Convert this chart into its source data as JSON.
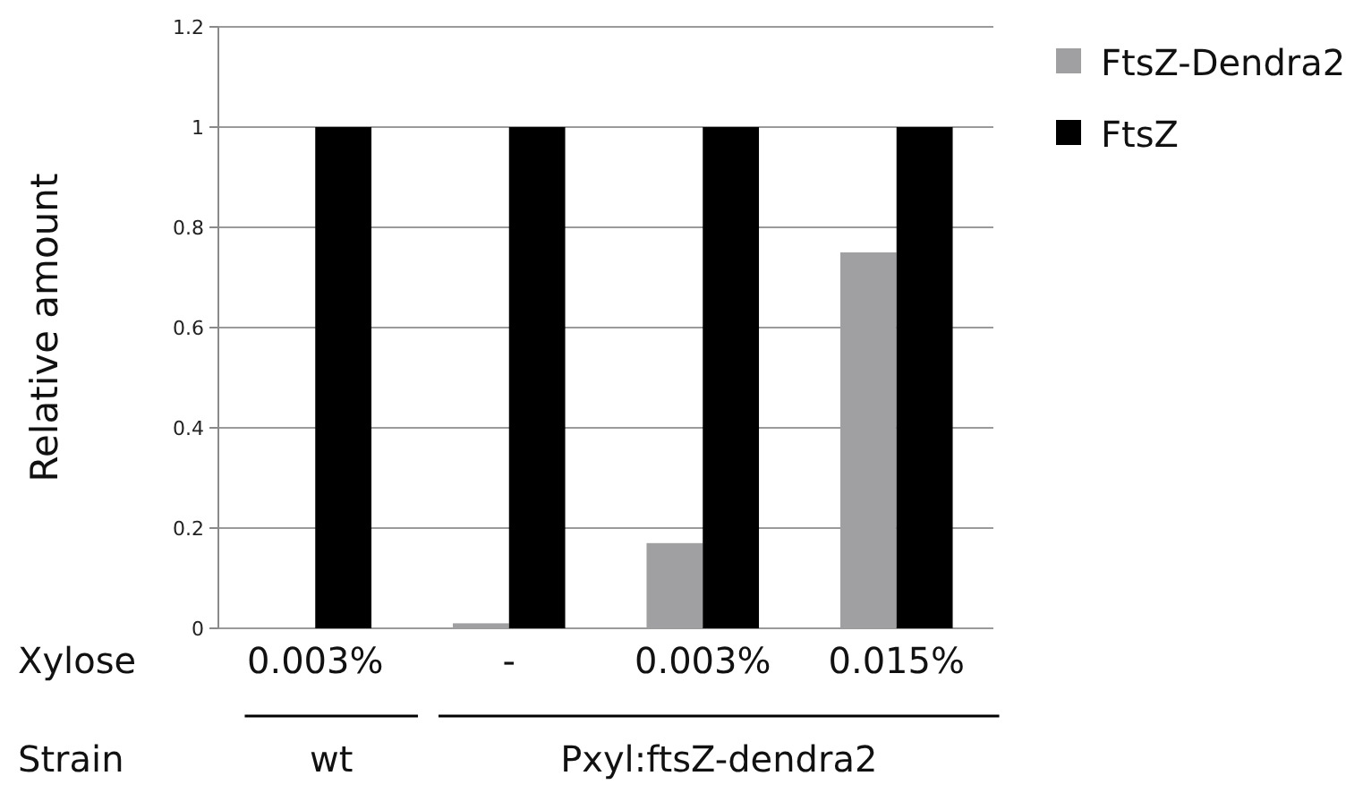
{
  "chart_data": {
    "type": "bar",
    "xlabel": "Xylose",
    "ylabel": "Relative amount",
    "categories": [
      "0.003%",
      "-",
      "0.003%",
      "0.015%"
    ],
    "series": [
      {
        "name": "FtsZ-Dendra2",
        "color": "#a0a0a2",
        "values": [
          0,
          0.01,
          0.17,
          0.75
        ]
      },
      {
        "name": "FtsZ",
        "color": "#000000",
        "values": [
          1,
          1,
          1,
          1
        ]
      }
    ],
    "ylim": [
      0,
      1.2
    ],
    "yticks": [
      0,
      0.2,
      0.4,
      0.6,
      0.8,
      1,
      1.2
    ],
    "grid": "y",
    "legend": "right",
    "annotations": [
      "Strain",
      "wt",
      "Pxyl:ftsZ-dendra2"
    ]
  }
}
